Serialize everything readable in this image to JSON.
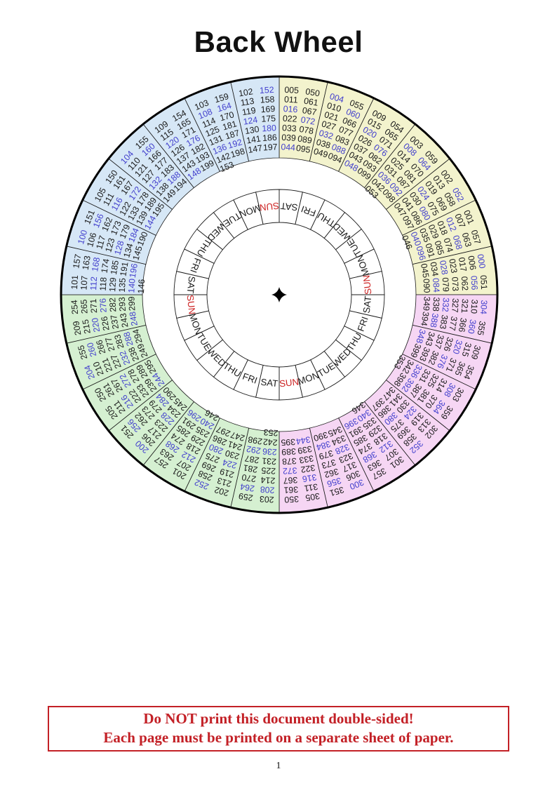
{
  "page": {
    "title": "Back Wheel",
    "page_number": "1"
  },
  "warning": {
    "line1": "Do NOT print this document double-sided!",
    "line2": "Each page must be printed on a separate sheet of paper."
  },
  "colors": {
    "quadrant_yellow": "#f3f3cd",
    "quadrant_pink": "#f6d6f4",
    "quadrant_green": "#d5f0d1",
    "quadrant_blue": "#d6e7f6",
    "leap_year_number": "#4340cd",
    "common_year_number": "#1a1a1a",
    "sunday_label": "#cc2222",
    "weekday_label": "#1a1a1a",
    "line": "#1a1a1a"
  },
  "wheel": {
    "description": "Perpetual calendar back wheel: 28 year sectors (clockwise from 12:00) over a 28-cell day ring; numbers divisible by 4 (leap years) are blue",
    "day_ring": {
      "highlight_day": "SUN",
      "cells_clockwise_from_top": [
        "SAT",
        "FRI",
        "THU",
        "WED",
        "TUE",
        "MON",
        "SUN",
        "SAT",
        "FRI",
        "THU",
        "WED",
        "TUE",
        "MON",
        "SUN",
        "SAT",
        "FRI",
        "THU",
        "WED",
        "TUE",
        "MON",
        "SUN",
        "SAT",
        "FRI",
        "THU",
        "WED",
        "TUE",
        "MON",
        "SUN"
      ]
    },
    "quadrants": [
      {
        "name": "yellow",
        "color_key": "quadrant_yellow",
        "position": "top-right",
        "sectors": [
          {
            "col1": [
              "005",
              "011",
              "016",
              "022",
              "033",
              "039",
              "044"
            ],
            "col2": [
              "050",
              "061",
              "067",
              "072",
              "078",
              "089",
              "095"
            ]
          },
          {
            "col1": [
              "004",
              "010",
              "021",
              "027",
              "032",
              "038",
              "049"
            ],
            "col2": [
              "055",
              "060",
              "066",
              "077",
              "083",
              "088",
              "094"
            ]
          },
          {
            "col1": [
              "009",
              "015",
              "020",
              "026",
              "037",
              "043",
              "048"
            ],
            "col2": [
              "054",
              "065",
              "071",
              "076",
              "082",
              "093",
              "099"
            ]
          },
          {
            "col1": [
              "003",
              "008",
              "014",
              "025",
              "031",
              "036",
              "042",
              "053"
            ],
            "col2": [
              "059",
              "064",
              "070",
              "081",
              "087",
              "092",
              "098"
            ]
          },
          {
            "col1": [
              "002",
              "013",
              "019",
              "024",
              "030",
              "041",
              "047"
            ],
            "col2": [
              "052",
              "058",
              "069",
              "075",
              "080",
              "086",
              "097"
            ]
          },
          {
            "col1": [
              "001",
              "007",
              "012",
              "018",
              "029",
              "035",
              "040",
              "046"
            ],
            "col2": [
              "057",
              "063",
              "068",
              "074",
              "085",
              "091",
              "096"
            ]
          },
          {
            "col1": [
              "000",
              "006",
              "017",
              "023",
              "028",
              "034",
              "045"
            ],
            "col2": [
              "051",
              "056",
              "062",
              "073",
              "079",
              "084",
              "090"
            ]
          }
        ]
      },
      {
        "name": "pink",
        "color_key": "quadrant_pink",
        "position": "bottom-right",
        "sectors": [
          {
            "col1": [
              "304",
              "310",
              "321",
              "327",
              "332",
              "338",
              "349"
            ],
            "col2": [
              "355",
              "360",
              "366",
              "377",
              "383",
              "388",
              "394"
            ]
          },
          {
            "col1": [
              "309",
              "315",
              "320",
              "326",
              "337",
              "343",
              "348"
            ],
            "col2": [
              "354",
              "365",
              "371",
              "376",
              "382",
              "393",
              "399"
            ]
          },
          {
            "col1": [
              "303",
              "308",
              "314",
              "325",
              "331",
              "336",
              "342",
              "353"
            ],
            "col2": [
              "359",
              "364",
              "370",
              "381",
              "387",
              "392",
              "398"
            ]
          },
          {
            "col1": [
              "302",
              "313",
              "319",
              "324",
              "330",
              "341",
              "347"
            ],
            "col2": [
              "352",
              "358",
              "369",
              "375",
              "380",
              "386",
              "397"
            ]
          },
          {
            "col1": [
              "301",
              "307",
              "312",
              "318",
              "329",
              "335",
              "340",
              "346"
            ],
            "col2": [
              "357",
              "363",
              "368",
              "374",
              "385",
              "391",
              "396"
            ]
          },
          {
            "col1": [
              "300",
              "306",
              "317",
              "323",
              "328",
              "334",
              "345"
            ],
            "col2": [
              "351",
              "356",
              "362",
              "373",
              "379",
              "384",
              "390"
            ]
          },
          {
            "col1": [
              "305",
              "311",
              "316",
              "322",
              "333",
              "339",
              "344"
            ],
            "col2": [
              "350",
              "361",
              "367",
              "372",
              "378",
              "389",
              "395"
            ]
          }
        ]
      },
      {
        "name": "green",
        "color_key": "quadrant_green",
        "position": "bottom-left",
        "sectors": [
          {
            "col1": [
              "203",
              "208",
              "214",
              "225",
              "231",
              "236",
              "242",
              "253"
            ],
            "col2": [
              "259",
              "264",
              "270",
              "281",
              "287",
              "292",
              "298"
            ]
          },
          {
            "col1": [
              "202",
              "213",
              "219",
              "224",
              "230",
              "241",
              "247"
            ],
            "col2": [
              "252",
              "258",
              "269",
              "275",
              "280",
              "286",
              "297"
            ]
          },
          {
            "col1": [
              "201",
              "207",
              "212",
              "218",
              "229",
              "235",
              "240",
              "246"
            ],
            "col2": [
              "257",
              "263",
              "268",
              "274",
              "285",
              "291",
              "296"
            ]
          },
          {
            "col1": [
              "200",
              "206",
              "217",
              "223",
              "228",
              "234",
              "245"
            ],
            "col2": [
              "251",
              "256",
              "262",
              "273",
              "279",
              "284",
              "290"
            ]
          },
          {
            "col1": [
              "205",
              "211",
              "216",
              "222",
              "233",
              "239",
              "244"
            ],
            "col2": [
              "250",
              "261",
              "267",
              "272",
              "278",
              "289",
              "295"
            ]
          },
          {
            "col1": [
              "204",
              "210",
              "221",
              "227",
              "232",
              "238",
              "249"
            ],
            "col2": [
              "255",
              "260",
              "266",
              "277",
              "283",
              "288",
              "294"
            ]
          },
          {
            "col1": [
              "209",
              "215",
              "220",
              "226",
              "237",
              "243",
              "248"
            ],
            "col2": [
              "254",
              "265",
              "271",
              "276",
              "282",
              "293",
              "299"
            ]
          }
        ]
      },
      {
        "name": "blue",
        "color_key": "quadrant_blue",
        "position": "top-left",
        "sectors": [
          {
            "col1": [
              "101",
              "107",
              "112",
              "118",
              "129",
              "135",
              "140",
              "146"
            ],
            "col2": [
              "157",
              "163",
              "168",
              "174",
              "185",
              "191",
              "196"
            ]
          },
          {
            "col1": [
              "100",
              "106",
              "117",
              "123",
              "128",
              "134",
              "145"
            ],
            "col2": [
              "151",
              "156",
              "162",
              "173",
              "179",
              "184",
              "190"
            ]
          },
          {
            "col1": [
              "105",
              "111",
              "116",
              "122",
              "133",
              "139",
              "144"
            ],
            "col2": [
              "150",
              "161",
              "167",
              "172",
              "178",
              "189",
              "195"
            ]
          },
          {
            "col1": [
              "104",
              "110",
              "121",
              "127",
              "132",
              "138",
              "149"
            ],
            "col2": [
              "155",
              "160",
              "166",
              "177",
              "183",
              "188",
              "194"
            ]
          },
          {
            "col1": [
              "109",
              "115",
              "120",
              "126",
              "137",
              "143",
              "148"
            ],
            "col2": [
              "154",
              "165",
              "171",
              "176",
              "182",
              "193",
              "199"
            ]
          },
          {
            "col1": [
              "103",
              "108",
              "114",
              "125",
              "131",
              "136",
              "142",
              "153"
            ],
            "col2": [
              "159",
              "164",
              "170",
              "181",
              "187",
              "192",
              "198"
            ]
          },
          {
            "col1": [
              "102",
              "113",
              "119",
              "124",
              "130",
              "141",
              "147"
            ],
            "col2": [
              "152",
              "158",
              "169",
              "175",
              "180",
              "186",
              "197"
            ]
          }
        ]
      }
    ],
    "leap_rule": "year numbers divisible by 4 are rendered in blue"
  }
}
